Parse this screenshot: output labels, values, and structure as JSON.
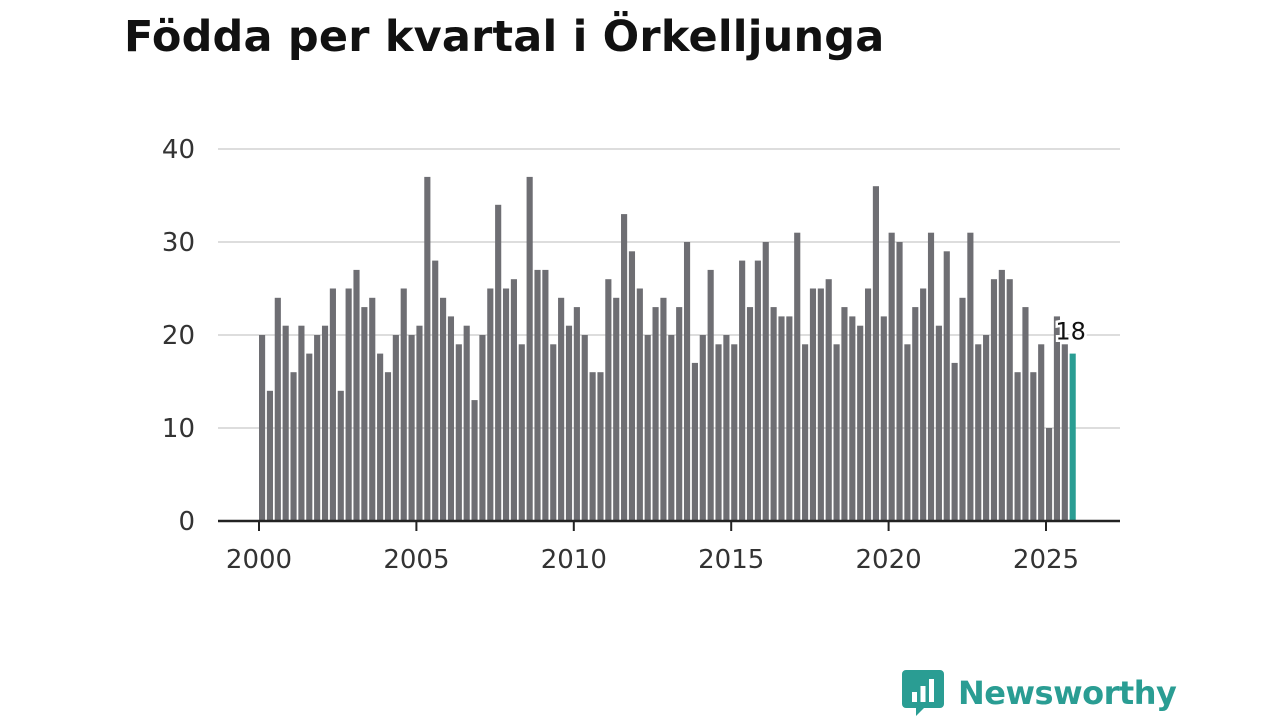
{
  "chart_data": {
    "type": "bar",
    "title": "Födda per kvartal i Örkelljunga",
    "xlabel": "",
    "ylabel": "",
    "ylim": [
      0,
      40
    ],
    "yticks": [
      0,
      10,
      20,
      30,
      40
    ],
    "xticks": [
      "2000",
      "2005",
      "2010",
      "2015",
      "2020",
      "2025"
    ],
    "grid": true,
    "start_year": 2000,
    "start_quarter": 1,
    "highlight_last": true,
    "highlight_label": "18",
    "colors": {
      "bar": "#6e6e73",
      "highlight": "#2a9d93",
      "grid": "#dddddd",
      "axis": "#222222"
    },
    "values": [
      20,
      14,
      24,
      21,
      16,
      21,
      18,
      20,
      21,
      25,
      14,
      25,
      27,
      23,
      24,
      18,
      16,
      20,
      25,
      20,
      21,
      37,
      28,
      24,
      22,
      19,
      21,
      13,
      20,
      25,
      34,
      25,
      26,
      19,
      37,
      27,
      27,
      19,
      24,
      21,
      23,
      20,
      16,
      16,
      26,
      24,
      33,
      29,
      25,
      20,
      23,
      24,
      20,
      23,
      30,
      17,
      20,
      27,
      19,
      20,
      19,
      28,
      23,
      28,
      30,
      23,
      22,
      22,
      31,
      19,
      25,
      25,
      26,
      19,
      23,
      22,
      21,
      25,
      36,
      22,
      31,
      30,
      19,
      23,
      25,
      31,
      21,
      29,
      17,
      24,
      31,
      19,
      20,
      26,
      27,
      26,
      16,
      23,
      16,
      19,
      10,
      22,
      19,
      18
    ]
  },
  "brand": {
    "name": "Newsworthy",
    "logo_icon": "bar-chart-bubble-icon",
    "color": "#2a9d93"
  }
}
